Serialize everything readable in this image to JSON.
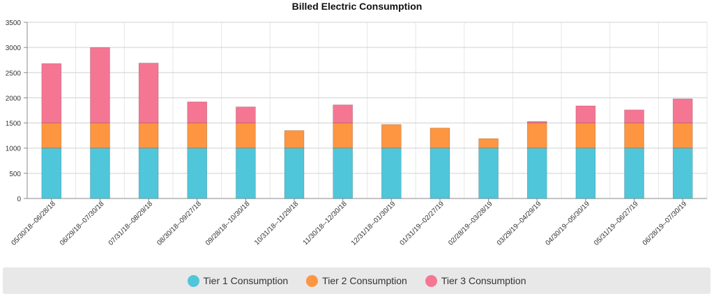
{
  "chart_data": {
    "type": "bar",
    "stacked": true,
    "title": "Billed Electric Consumption",
    "xlabel": "",
    "ylabel": "",
    "ylim": [
      0,
      3500
    ],
    "yticks": [
      0,
      500,
      1000,
      1500,
      2000,
      2500,
      3000,
      3500
    ],
    "grid": true,
    "legend_position": "bottom",
    "categories": [
      "05/30/18--06/28/18",
      "06/29/18--07/30/18",
      "07/31/18--08/29/18",
      "08/30/18--09/27/18",
      "09/28/18--10/30/18",
      "10/31/18--11/29/18",
      "11/30/18--12/30/18",
      "12/31/18--01/30/19",
      "01/31/19--02/27/19",
      "02/28/19--03/28/19",
      "03/29/19--04/29/19",
      "04/30/19--05/30/19",
      "05/31/19--06/27/19",
      "06/28/19--07/30/19"
    ],
    "series": [
      {
        "name": "Tier 1 Consumption",
        "color": "#4fc6da",
        "values": [
          1000,
          1000,
          1000,
          1000,
          1000,
          1000,
          1000,
          1000,
          1000,
          1000,
          1000,
          1000,
          1000,
          1000
        ]
      },
      {
        "name": "Tier 2 Consumption",
        "color": "#fd9541",
        "values": [
          500,
          500,
          500,
          500,
          500,
          350,
          500,
          470,
          400,
          190,
          500,
          500,
          500,
          500
        ]
      },
      {
        "name": "Tier 3 Consumption",
        "color": "#f47693",
        "values": [
          1180,
          1500,
          1190,
          420,
          320,
          0,
          360,
          0,
          0,
          0,
          30,
          340,
          260,
          480
        ]
      }
    ]
  }
}
